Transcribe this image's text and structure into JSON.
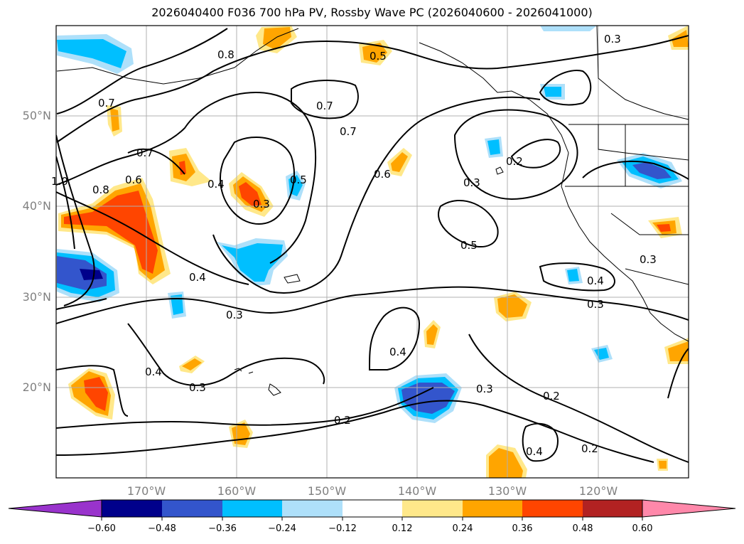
{
  "title": "2026040400 F036 700 hPa PV, Rossby Wave PC (2026040600 - 2026041000)",
  "map": {
    "lat_ticks": [
      "50°N",
      "40°N",
      "30°N",
      "20°N"
    ],
    "lon_ticks": [
      "170°W",
      "160°W",
      "150°W",
      "140°W",
      "130°W",
      "120°W"
    ],
    "contour_labels": [
      "0.8",
      "0.7",
      "0.5",
      "0.3",
      "0.7",
      "0.7",
      "0.6",
      "0.6",
      "0.4",
      "0.3",
      "0.5",
      "0.2",
      "0.3",
      "0.4",
      "0.5",
      "0.4",
      "0.3",
      "0.3",
      "0.4",
      "0.4",
      "0.3",
      "0.2",
      "0.3",
      "0.2",
      "0.4",
      "0.2",
      "0.8",
      "1.0",
      "0.7",
      "0.3"
    ]
  },
  "colorbar": {
    "tick_labels": [
      "−0.60",
      "−0.48",
      "−0.36",
      "−0.24",
      "−0.12",
      "0.12",
      "0.24",
      "0.36",
      "0.48",
      "0.60"
    ],
    "colors": [
      "#9933cc",
      "#00008b",
      "#3355cc",
      "#00bfff",
      "#aee0fa",
      "#ffffff",
      "#ffe88a",
      "#ffa500",
      "#ff4500",
      "#b22222",
      "#ff88aa"
    ]
  }
}
